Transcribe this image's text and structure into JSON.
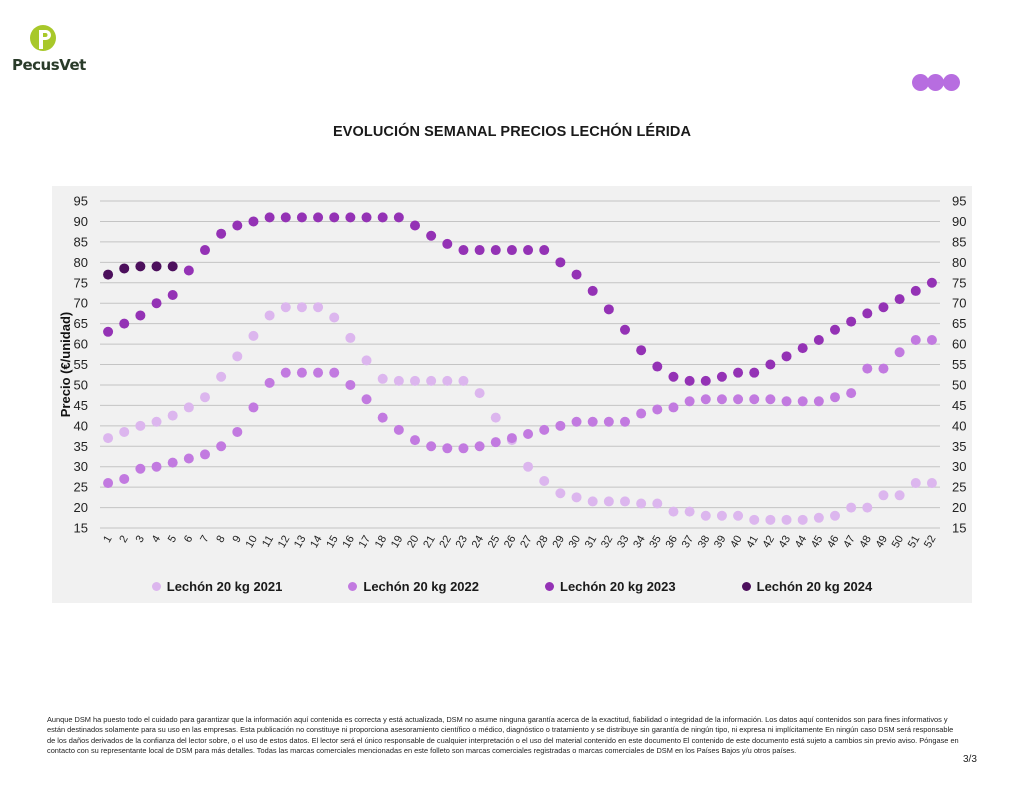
{
  "brand": {
    "name": "PecusVet"
  },
  "chart_data": {
    "type": "scatter",
    "title": "EVOLUCIÓN SEMANAL PRECIOS LECHÓN LÉRIDA",
    "ylabel": "Precio (€/unidad)",
    "xlabel": "",
    "ylim": [
      15,
      95
    ],
    "yticks": [
      15,
      20,
      25,
      30,
      35,
      40,
      45,
      50,
      55,
      60,
      65,
      70,
      75,
      80,
      85,
      90,
      95
    ],
    "x": [
      "1",
      "2",
      "3",
      "4",
      "5",
      "6",
      "7",
      "8",
      "9",
      "10",
      "11",
      "12",
      "13",
      "14",
      "15",
      "16",
      "17",
      "18",
      "19",
      "20",
      "21",
      "22",
      "23",
      "24",
      "25",
      "26",
      "27",
      "28",
      "29",
      "30",
      "31",
      "32",
      "33",
      "34",
      "35",
      "36",
      "37",
      "38",
      "39",
      "40",
      "41",
      "42",
      "43",
      "44",
      "45",
      "46",
      "47",
      "48",
      "49",
      "50",
      "51",
      "52"
    ],
    "grid": true,
    "legend_position": "bottom",
    "series": [
      {
        "name": "Lechón 20 kg 2021",
        "color": "#dcb6ee",
        "values": [
          37,
          38.5,
          40,
          41,
          42.5,
          44.5,
          47,
          52,
          57,
          62,
          67,
          69,
          69,
          69,
          66.5,
          61.5,
          56,
          51.5,
          51,
          51,
          51,
          51,
          51,
          48,
          42,
          36.5,
          30,
          26.5,
          23.5,
          22.5,
          21.5,
          21.5,
          21.5,
          21,
          21,
          19,
          19,
          18,
          18,
          18,
          17,
          17,
          17,
          17,
          17.5,
          18,
          20,
          20,
          23,
          23,
          26,
          26
        ]
      },
      {
        "name": "Lechón 20 kg 2022",
        "color": "#c27ae0",
        "values": [
          26,
          27,
          29.5,
          30,
          31,
          32,
          33,
          35,
          38.5,
          44.5,
          50.5,
          53,
          53,
          53,
          53,
          50,
          46.5,
          42,
          39,
          36.5,
          35,
          34.5,
          34.5,
          35,
          36,
          37,
          38,
          39,
          40,
          41,
          41,
          41,
          41,
          43,
          44,
          44.5,
          46,
          46.5,
          46.5,
          46.5,
          46.5,
          46.5,
          46,
          46,
          46,
          47,
          48,
          54,
          54,
          58,
          61,
          61
        ]
      },
      {
        "name": "Lechón 20 kg 2023",
        "color": "#9432b5",
        "values": [
          63,
          65,
          67,
          70,
          72,
          78,
          83,
          87,
          89,
          90,
          91,
          91,
          91,
          91,
          91,
          91,
          91,
          91,
          91,
          89,
          86.5,
          84.5,
          83,
          83,
          83,
          83,
          83,
          83,
          80,
          77,
          73,
          68.5,
          63.5,
          58.5,
          54.5,
          52,
          51,
          51,
          52,
          53,
          53,
          55,
          57,
          59,
          61,
          63.5,
          65.5,
          67.5,
          69,
          71,
          73,
          75
        ]
      },
      {
        "name": "Lechón 20 kg 2024",
        "color": "#4c0f5c",
        "values": [
          77,
          78.5,
          79,
          79,
          79
        ]
      }
    ]
  },
  "disclaimer": "Aunque DSM ha puesto todo el cuidado para garantizar que la información aquí contenida es correcta y está actualizada, DSM no asume ninguna garantía acerca de la exactitud, fiabilidad o integridad de la información. Los datos aquí contenidos son para fines informativos y están destinados solamente para su uso en las empresas. Esta publicación no constituye ni proporciona asesoramiento científico o médico, diagnóstico o tratamiento y se distribuye sin garantía de ningún tipo, ni expresa ni implícitamente En ningún caso DSM será responsable de los daños derivados de la confianza del lector sobre, o el uso de estos datos. El lector será el único responsable de cualquier interpretación o el uso del material contenido en este documento El contenido de este documento está sujeto a cambios sin previo aviso. Póngase en contacto con su representante local de DSM para más detalles. Todas las marcas comerciales mencionadas en este folleto son marcas comerciales registradas o marcas comerciales de DSM en los Países Bajos y/u otros países.",
  "page_number": "3/3",
  "colors": {
    "panel_bg": "#f1f1f1",
    "accent_dots": "#b76de0",
    "logo_green": "#a8c82a"
  }
}
